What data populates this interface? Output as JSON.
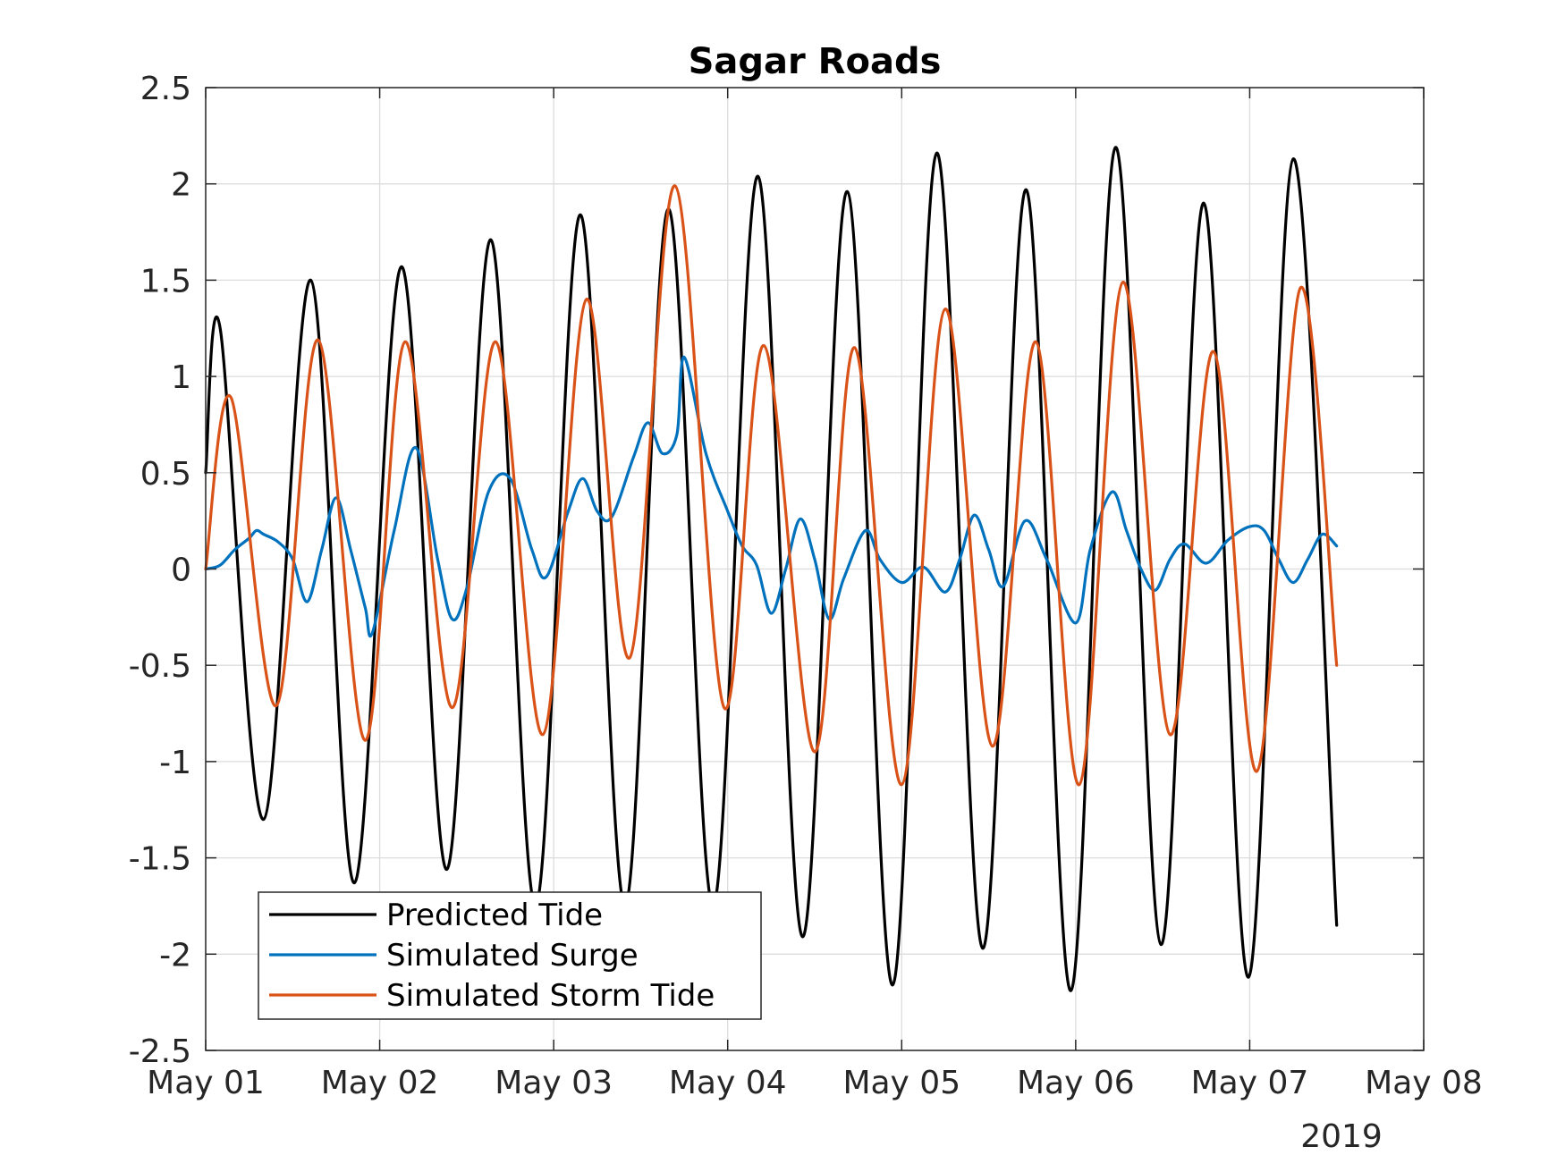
{
  "chart_data": {
    "type": "line",
    "title": "Sagar Roads",
    "xlabel": "",
    "ylabel": "",
    "x_range": [
      "2019-05-01",
      "2019-05-08"
    ],
    "x_ticks": [
      "May 01",
      "May 02",
      "May 03",
      "May 04",
      "May 05",
      "May 06",
      "May 07",
      "May 08"
    ],
    "x_secondary_label": "2019",
    "ylim": [
      -2.5,
      2.5
    ],
    "y_ticks": [
      "2.5",
      "2",
      "1.5",
      "1",
      "0.5",
      "0",
      "-0.5",
      "-1",
      "-1.5",
      "-2",
      "-2.5"
    ],
    "grid": true,
    "legend_position": "bottom-left",
    "series": [
      {
        "name": "Predicted Tide",
        "color": "#000000",
        "points": [
          [
            "2019-05-01T00:00",
            0.5
          ],
          [
            "2019-05-01T02:00",
            1.25
          ],
          [
            "2019-05-01T08:00",
            -1.3
          ],
          [
            "2019-05-01T14:30",
            1.5
          ],
          [
            "2019-05-01T20:30",
            -1.63
          ],
          [
            "2019-05-02T03:00",
            1.57
          ],
          [
            "2019-05-02T09:15",
            -1.56
          ],
          [
            "2019-05-02T15:20",
            1.71
          ],
          [
            "2019-05-02T21:30",
            -1.75
          ],
          [
            "2019-05-03T03:40",
            1.84
          ],
          [
            "2019-05-03T09:50",
            -1.75
          ],
          [
            "2019-05-03T15:50",
            1.87
          ],
          [
            "2019-05-03T22:00",
            -1.75
          ],
          [
            "2019-05-04T04:10",
            2.04
          ],
          [
            "2019-05-04T10:20",
            -1.91
          ],
          [
            "2019-05-04T16:30",
            1.96
          ],
          [
            "2019-05-04T22:45",
            -2.16
          ],
          [
            "2019-05-05T04:50",
            2.16
          ],
          [
            "2019-05-05T11:10",
            -1.97
          ],
          [
            "2019-05-05T17:10",
            1.97
          ],
          [
            "2019-05-05T23:20",
            -2.19
          ],
          [
            "2019-05-06T05:30",
            2.19
          ],
          [
            "2019-05-06T11:45",
            -1.95
          ],
          [
            "2019-05-06T17:40",
            1.9
          ],
          [
            "2019-05-06T23:50",
            -2.12
          ],
          [
            "2019-05-07T06:00",
            2.13
          ],
          [
            "2019-05-07T12:00",
            -1.85
          ]
        ]
      },
      {
        "name": "Simulated Surge",
        "color": "#0072BD",
        "points": [
          [
            "2019-05-01T00:00",
            0.0
          ],
          [
            "2019-05-01T02:00",
            0.02
          ],
          [
            "2019-05-01T04:00",
            0.1
          ],
          [
            "2019-05-01T06:00",
            0.16
          ],
          [
            "2019-05-01T07:00",
            0.2
          ],
          [
            "2019-05-01T08:00",
            0.18
          ],
          [
            "2019-05-01T10:00",
            0.14
          ],
          [
            "2019-05-01T12:00",
            0.05
          ],
          [
            "2019-05-01T14:00",
            -0.17
          ],
          [
            "2019-05-01T16:00",
            0.1
          ],
          [
            "2019-05-01T18:00",
            0.37
          ],
          [
            "2019-05-01T20:00",
            0.1
          ],
          [
            "2019-05-01T22:00",
            -0.2
          ],
          [
            "2019-05-01T23:00",
            -0.33
          ],
          [
            "2019-05-02T02:00",
            0.2
          ],
          [
            "2019-05-02T05:00",
            0.63
          ],
          [
            "2019-05-02T08:00",
            0.05
          ],
          [
            "2019-05-02T10:00",
            -0.26
          ],
          [
            "2019-05-02T12:00",
            -0.1
          ],
          [
            "2019-05-02T15:00",
            0.4
          ],
          [
            "2019-05-02T18:00",
            0.47
          ],
          [
            "2019-05-02T21:00",
            0.1
          ],
          [
            "2019-05-02T23:00",
            -0.04
          ],
          [
            "2019-05-03T02:00",
            0.3
          ],
          [
            "2019-05-03T04:00",
            0.47
          ],
          [
            "2019-05-03T06:00",
            0.3
          ],
          [
            "2019-05-03T08:00",
            0.27
          ],
          [
            "2019-05-03T11:00",
            0.58
          ],
          [
            "2019-05-03T13:00",
            0.76
          ],
          [
            "2019-05-03T15:00",
            0.6
          ],
          [
            "2019-05-03T17:00",
            0.7
          ],
          [
            "2019-05-03T18:00",
            1.1
          ],
          [
            "2019-05-03T21:00",
            0.6
          ],
          [
            "2019-05-04T00:00",
            0.3
          ],
          [
            "2019-05-04T02:00",
            0.12
          ],
          [
            "2019-05-04T04:00",
            0.02
          ],
          [
            "2019-05-04T06:00",
            -0.23
          ],
          [
            "2019-05-04T08:00",
            0.0
          ],
          [
            "2019-05-04T10:00",
            0.26
          ],
          [
            "2019-05-04T12:00",
            0.05
          ],
          [
            "2019-05-04T14:00",
            -0.26
          ],
          [
            "2019-05-04T16:00",
            -0.05
          ],
          [
            "2019-05-04T19:00",
            0.2
          ],
          [
            "2019-05-04T21:00",
            0.05
          ],
          [
            "2019-05-05T00:00",
            -0.07
          ],
          [
            "2019-05-05T03:00",
            0.01
          ],
          [
            "2019-05-05T06:00",
            -0.12
          ],
          [
            "2019-05-05T08:00",
            0.05
          ],
          [
            "2019-05-05T10:00",
            0.28
          ],
          [
            "2019-05-05T12:00",
            0.1
          ],
          [
            "2019-05-05T14:00",
            -0.09
          ],
          [
            "2019-05-05T17:00",
            0.25
          ],
          [
            "2019-05-05T20:00",
            0.05
          ],
          [
            "2019-05-06T00:00",
            -0.28
          ],
          [
            "2019-05-06T02:00",
            0.1
          ],
          [
            "2019-05-06T05:00",
            0.4
          ],
          [
            "2019-05-06T07:00",
            0.2
          ],
          [
            "2019-05-06T09:00",
            0.0
          ],
          [
            "2019-05-06T11:00",
            -0.11
          ],
          [
            "2019-05-06T13:00",
            0.05
          ],
          [
            "2019-05-06T15:00",
            0.13
          ],
          [
            "2019-05-06T18:00",
            0.03
          ],
          [
            "2019-05-06T21:00",
            0.15
          ],
          [
            "2019-05-07T00:00",
            0.22
          ],
          [
            "2019-05-07T02:00",
            0.2
          ],
          [
            "2019-05-07T04:00",
            0.05
          ],
          [
            "2019-05-07T06:00",
            -0.07
          ],
          [
            "2019-05-07T08:00",
            0.05
          ],
          [
            "2019-05-07T10:00",
            0.18
          ],
          [
            "2019-05-07T12:00",
            0.12
          ]
        ]
      },
      {
        "name": "Simulated Storm Tide",
        "color": "#D95319",
        "points": [
          [
            "2019-05-01T00:00",
            0.0
          ],
          [
            "2019-05-01T03:30",
            0.89
          ],
          [
            "2019-05-01T09:45",
            -0.71
          ],
          [
            "2019-05-01T15:30",
            1.19
          ],
          [
            "2019-05-01T22:00",
            -0.89
          ],
          [
            "2019-05-02T03:30",
            1.18
          ],
          [
            "2019-05-02T10:00",
            -0.72
          ],
          [
            "2019-05-02T16:00",
            1.18
          ],
          [
            "2019-05-02T22:30",
            -0.86
          ],
          [
            "2019-05-03T04:30",
            1.4
          ],
          [
            "2019-05-03T10:30",
            -0.46
          ],
          [
            "2019-05-03T16:45",
            1.99
          ],
          [
            "2019-05-03T23:30",
            -0.72
          ],
          [
            "2019-05-04T05:00",
            1.16
          ],
          [
            "2019-05-04T12:00",
            -0.95
          ],
          [
            "2019-05-04T17:30",
            1.15
          ],
          [
            "2019-05-05T00:00",
            -1.12
          ],
          [
            "2019-05-05T06:00",
            1.35
          ],
          [
            "2019-05-05T12:30",
            -0.92
          ],
          [
            "2019-05-05T18:30",
            1.18
          ],
          [
            "2019-05-06T00:30",
            -1.12
          ],
          [
            "2019-05-06T06:30",
            1.49
          ],
          [
            "2019-05-06T13:00",
            -0.86
          ],
          [
            "2019-05-06T19:00",
            1.13
          ],
          [
            "2019-05-07T01:00",
            -1.05
          ],
          [
            "2019-05-07T07:00",
            1.46
          ],
          [
            "2019-05-07T12:00",
            -0.5
          ]
        ]
      }
    ]
  }
}
